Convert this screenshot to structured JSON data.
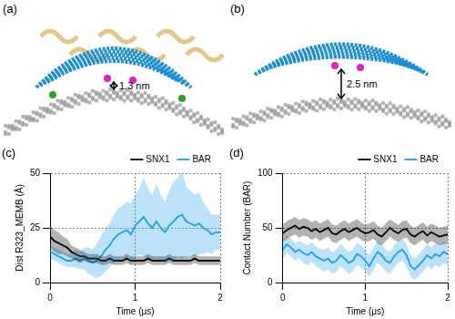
{
  "figure": {
    "panels": [
      {
        "label": "(a)",
        "annotation": "1.3 nm"
      },
      {
        "label": "(b)",
        "annotation": "2.5 nm"
      }
    ]
  },
  "chart_data": [
    {
      "label": "(c)",
      "type": "line",
      "x_label": "Time (μs)",
      "y_label": "Dist R323_MEMB (Å)",
      "xlim": [
        0,
        2
      ],
      "xticks": [
        0,
        1,
        2
      ],
      "ylim": [
        0,
        50
      ],
      "yticks": [
        0,
        25,
        50
      ],
      "grid": true,
      "legend": "upper right",
      "x": [
        0,
        0.05,
        0.1,
        0.15,
        0.2,
        0.25,
        0.3,
        0.35,
        0.4,
        0.45,
        0.5,
        0.55,
        0.6,
        0.65,
        0.7,
        0.75,
        0.8,
        0.85,
        0.9,
        0.95,
        1,
        1.05,
        1.1,
        1.15,
        1.2,
        1.25,
        1.3,
        1.35,
        1.4,
        1.45,
        1.5,
        1.55,
        1.6,
        1.65,
        1.7,
        1.75,
        1.8,
        1.85,
        1.9,
        1.95,
        2
      ],
      "series": [
        {
          "name": "SNX1",
          "color": "#000000",
          "values": [
            21,
            19,
            18,
            17,
            16,
            14,
            13,
            12,
            12,
            11,
            11,
            11,
            10,
            10,
            11,
            10,
            10,
            10,
            11,
            10,
            10,
            10,
            10,
            11,
            10,
            10,
            10,
            10,
            11,
            10,
            10,
            10,
            10,
            10,
            11,
            10,
            10,
            10,
            10,
            10,
            10
          ],
          "error": [
            5,
            5,
            5,
            4,
            4,
            3,
            3,
            3,
            2,
            2,
            2,
            2,
            2,
            2,
            2,
            2,
            2,
            2,
            2,
            2,
            2,
            2,
            2,
            2,
            2,
            2,
            2,
            2,
            2,
            2,
            2,
            2,
            2,
            2,
            2,
            2,
            2,
            2,
            2,
            2,
            2
          ]
        },
        {
          "name": "BAR",
          "color": "#1f9ee8",
          "values": [
            14,
            13,
            12,
            11,
            10,
            10,
            11,
            10,
            11,
            10,
            9,
            10,
            12,
            15,
            17,
            20,
            22,
            23,
            24,
            22,
            26,
            28,
            30,
            27,
            25,
            28,
            25,
            23,
            26,
            28,
            30,
            31,
            28,
            27,
            26,
            27,
            25,
            24,
            22,
            23,
            23
          ],
          "error": [
            3,
            3,
            3,
            3,
            3,
            3,
            4,
            4,
            5,
            6,
            6,
            8,
            9,
            10,
            10,
            11,
            12,
            12,
            13,
            14,
            14,
            15,
            18,
            16,
            15,
            17,
            15,
            14,
            16,
            18,
            18,
            20,
            16,
            15,
            14,
            14,
            12,
            10,
            9,
            8,
            8
          ]
        }
      ]
    },
    {
      "label": "(d)",
      "type": "line",
      "x_label": "Time (μs)",
      "y_label": "Contact Number (BAR)",
      "xlim": [
        0,
        2
      ],
      "xticks": [
        0,
        1,
        2
      ],
      "ylim": [
        0,
        100
      ],
      "yticks": [
        0,
        50,
        100
      ],
      "grid": true,
      "legend": "upper right",
      "x": [
        0,
        0.05,
        0.1,
        0.15,
        0.2,
        0.25,
        0.3,
        0.35,
        0.4,
        0.45,
        0.5,
        0.55,
        0.6,
        0.65,
        0.7,
        0.75,
        0.8,
        0.85,
        0.9,
        0.95,
        1,
        1.05,
        1.1,
        1.15,
        1.2,
        1.25,
        1.3,
        1.35,
        1.4,
        1.45,
        1.5,
        1.55,
        1.6,
        1.65,
        1.7,
        1.75,
        1.8,
        1.85,
        1.9,
        1.95,
        2
      ],
      "series": [
        {
          "name": "SNX1",
          "color": "#000000",
          "values": [
            45,
            48,
            50,
            52,
            49,
            51,
            50,
            47,
            49,
            46,
            48,
            50,
            45,
            44,
            47,
            49,
            46,
            48,
            50,
            47,
            45,
            46,
            48,
            44,
            42,
            46,
            50,
            47,
            45,
            48,
            49,
            44,
            42,
            45,
            47,
            43,
            46,
            44,
            42,
            43,
            44
          ],
          "error": [
            8,
            8,
            8,
            8,
            8,
            8,
            8,
            8,
            8,
            8,
            8,
            8,
            8,
            8,
            8,
            8,
            8,
            8,
            8,
            8,
            8,
            8,
            8,
            8,
            8,
            8,
            8,
            8,
            8,
            8,
            8,
            8,
            8,
            8,
            8,
            8,
            8,
            8,
            8,
            8,
            8
          ]
        },
        {
          "name": "BAR",
          "color": "#1f9ee8",
          "values": [
            30,
            35,
            32,
            28,
            30,
            27,
            25,
            28,
            24,
            22,
            20,
            22,
            18,
            20,
            25,
            22,
            18,
            20,
            26,
            24,
            20,
            15,
            22,
            28,
            25,
            20,
            18,
            24,
            28,
            30,
            25,
            15,
            12,
            16,
            20,
            25,
            22,
            26,
            24,
            28,
            26
          ],
          "error": [
            8,
            8,
            8,
            8,
            8,
            9,
            9,
            9,
            9,
            9,
            10,
            10,
            10,
            10,
            10,
            10,
            10,
            10,
            10,
            10,
            10,
            10,
            10,
            10,
            10,
            10,
            10,
            10,
            10,
            10,
            10,
            10,
            10,
            10,
            10,
            10,
            10,
            10,
            10,
            10,
            10
          ]
        }
      ]
    }
  ]
}
